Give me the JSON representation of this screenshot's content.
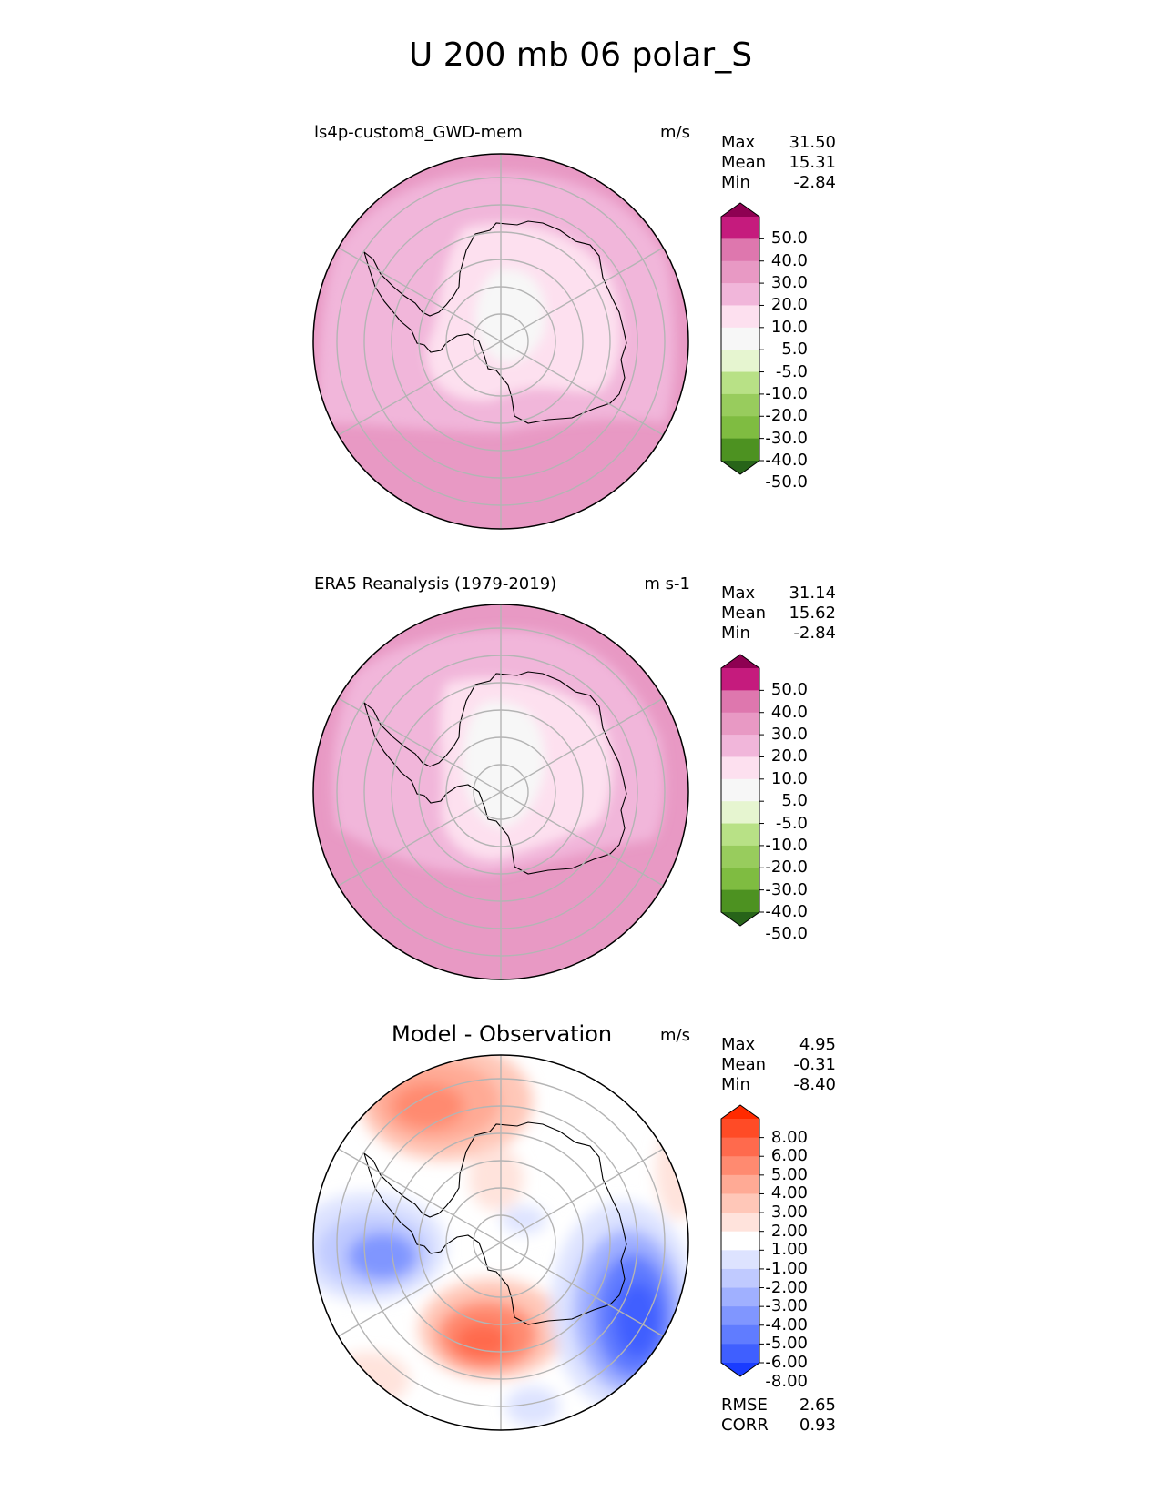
{
  "figure": {
    "title": "U 200 mb 06 polar_S"
  },
  "panels": [
    {
      "label": "ls4p-custom8_GWD-mem",
      "units": "m/s",
      "stats": [
        {
          "name": "Max",
          "value": "31.50"
        },
        {
          "name": "Mean",
          "value": "15.31"
        },
        {
          "name": "Min",
          "value": "-2.84"
        }
      ],
      "colorbar": {
        "tick_labels": [
          "50.0",
          "40.0",
          "30.0",
          "20.0",
          "10.0",
          "5.0",
          "-5.0",
          "-10.0",
          "-20.0",
          "-30.0",
          "-40.0",
          "-50.0"
        ],
        "colors": [
          "#8e0152",
          "#c51b7d",
          "#de77ae",
          "#e899c4",
          "#f1b6da",
          "#fde0ef",
          "#f7f7f7",
          "#e6f5d0",
          "#b8e186",
          "#98cc5d",
          "#7fbc41",
          "#4d9221",
          "#276419"
        ]
      }
    },
    {
      "label": "ERA5 Reanalysis (1979-2019)",
      "units": "m s-1",
      "stats": [
        {
          "name": "Max",
          "value": "31.14"
        },
        {
          "name": "Mean",
          "value": "15.62"
        },
        {
          "name": "Min",
          "value": "-2.84"
        }
      ],
      "colorbar": {
        "tick_labels": [
          "50.0",
          "40.0",
          "30.0",
          "20.0",
          "10.0",
          "5.0",
          "-5.0",
          "-10.0",
          "-20.0",
          "-30.0",
          "-40.0",
          "-50.0"
        ],
        "colors": [
          "#8e0152",
          "#c51b7d",
          "#de77ae",
          "#e899c4",
          "#f1b6da",
          "#fde0ef",
          "#f7f7f7",
          "#e6f5d0",
          "#b8e186",
          "#98cc5d",
          "#7fbc41",
          "#4d9221",
          "#276419"
        ]
      }
    },
    {
      "label": "Model - Observation",
      "units": "m/s",
      "stats": [
        {
          "name": "Max",
          "value": "4.95"
        },
        {
          "name": "Mean",
          "value": "-0.31"
        },
        {
          "name": "Min",
          "value": "-8.40"
        }
      ],
      "metrics": [
        {
          "name": "RMSE",
          "value": "2.65"
        },
        {
          "name": "CORR",
          "value": "0.93"
        }
      ],
      "colorbar": {
        "tick_labels": [
          "8.00",
          "6.00",
          "5.00",
          "4.00",
          "3.00",
          "2.00",
          "1.00",
          "-1.00",
          "-2.00",
          "-3.00",
          "-4.00",
          "-5.00",
          "-6.00",
          "-8.00"
        ],
        "colors": [
          "#ff2a00",
          "#ff4b26",
          "#ff6a4d",
          "#ff8a70",
          "#ffaa95",
          "#ffc7b8",
          "#ffe3dc",
          "#ffffff",
          "#dde3ff",
          "#c0caff",
          "#a0b0ff",
          "#8096ff",
          "#607cff",
          "#3f5fff",
          "#1a3cff"
        ]
      }
    }
  ]
}
